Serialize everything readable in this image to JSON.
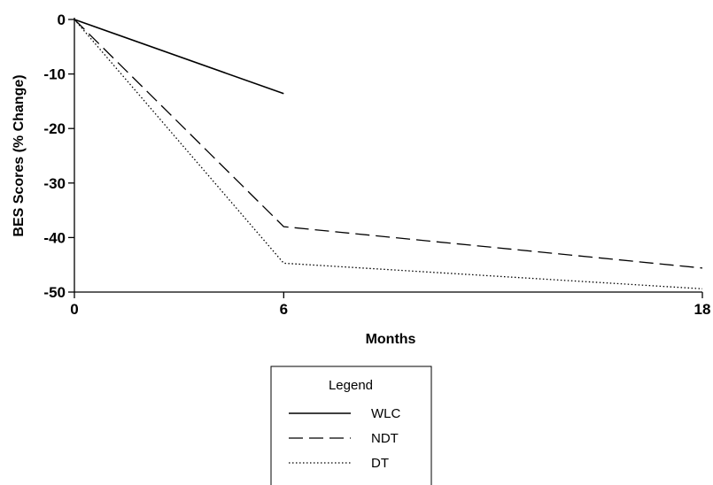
{
  "chart_data": {
    "type": "line",
    "xlabel": "Months",
    "ylabel": "BES Scores (% Change)",
    "x_ticks": [
      0,
      6,
      18
    ],
    "y_ticks": [
      0,
      -10,
      -20,
      -30,
      -40,
      -50
    ],
    "xlim": [
      0,
      18
    ],
    "ylim": [
      -50,
      0
    ],
    "grid": false,
    "legend": {
      "title": "Legend",
      "placement": "bottom-center",
      "entries": [
        "WLC",
        "NDT",
        "DT"
      ]
    },
    "series": [
      {
        "name": "WLC",
        "style": "solid",
        "x": [
          0,
          6
        ],
        "y": [
          0,
          -13.6
        ]
      },
      {
        "name": "NDT",
        "style": "dashed",
        "x": [
          0,
          6,
          18
        ],
        "y": [
          0,
          -38,
          -45.6
        ]
      },
      {
        "name": "DT",
        "style": "dotted",
        "x": [
          0,
          6,
          18
        ],
        "y": [
          0,
          -44.7,
          -49.4
        ]
      }
    ],
    "colors": {
      "line": "#000000",
      "background": "#ffffff"
    }
  }
}
